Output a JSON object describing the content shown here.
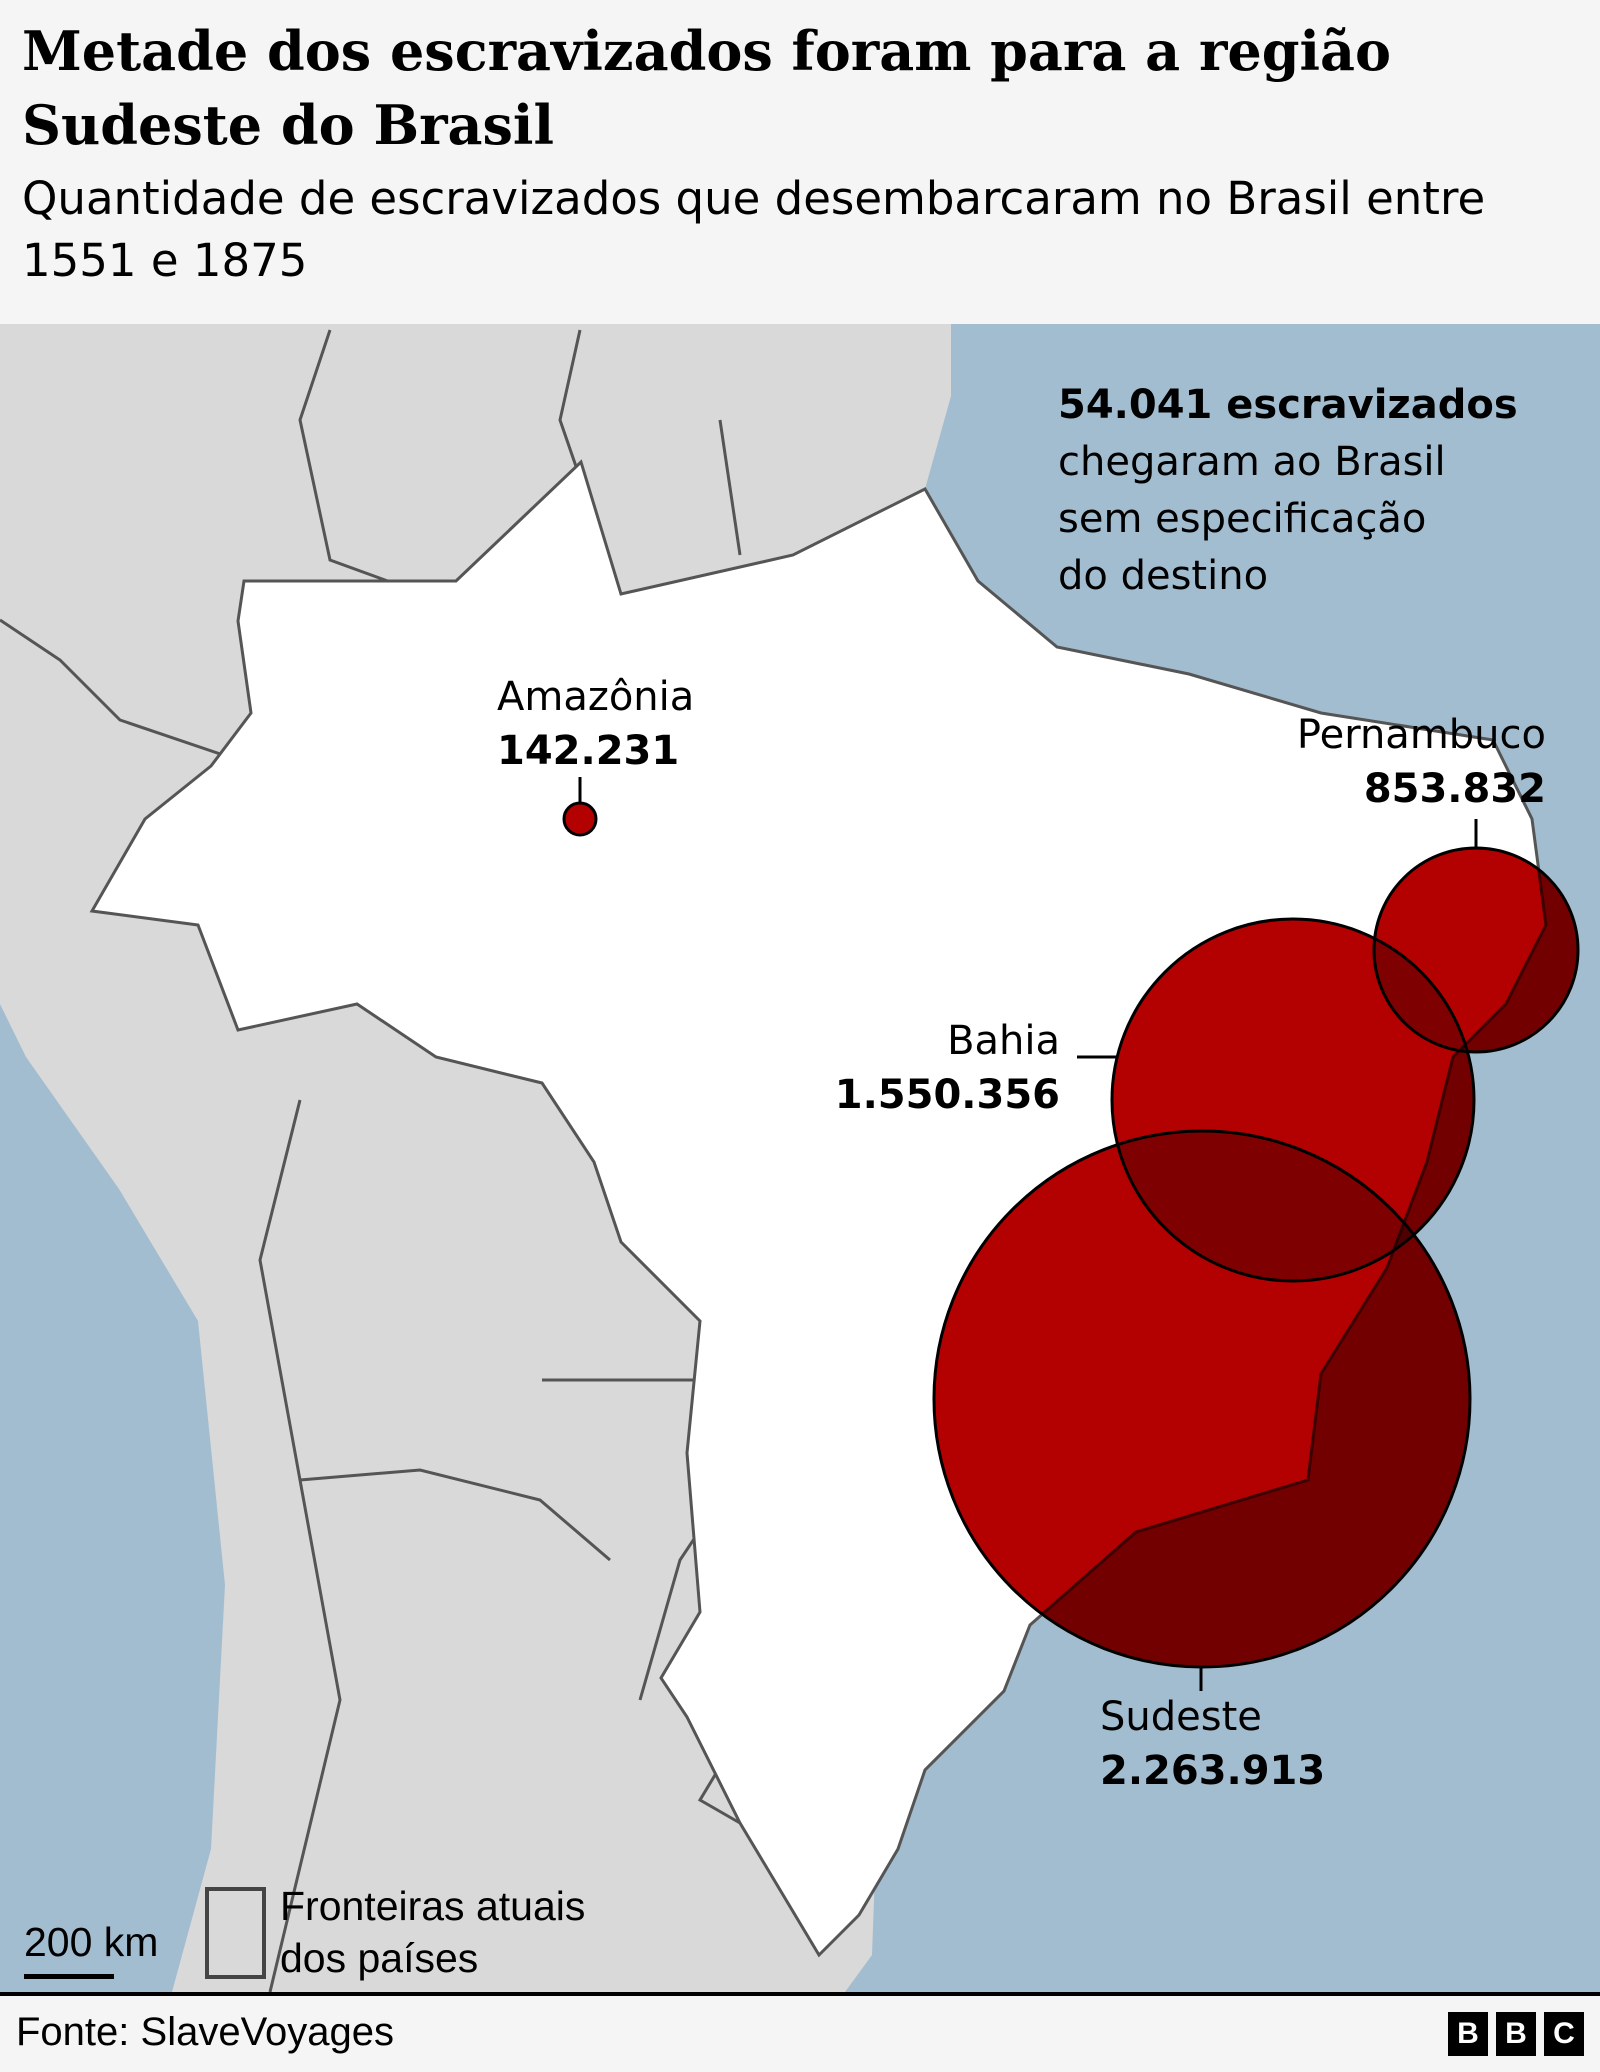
{
  "header": {
    "title": "Metade dos escravizados foram para a região Sudeste do Brasil",
    "subtitle": "Quantidade de escravizados que desembarcaram no Brasil entre 1551 e 1875"
  },
  "note": {
    "bold": "54.041 escravizados",
    "text": "chegaram ao Brasil sem especificação do destino"
  },
  "regions": [
    {
      "name": "Amazônia",
      "value": "142.231",
      "count": 142231
    },
    {
      "name": "Pernambuco",
      "value": "853.832",
      "count": 853832
    },
    {
      "name": "Bahia",
      "value": "1.550.356",
      "count": 1550356
    },
    {
      "name": "Sudeste",
      "value": "2.263.913",
      "count": 2263913
    }
  ],
  "legend": {
    "scale": "200 km",
    "borders": "Fronteiras atuais dos países"
  },
  "footer": {
    "source": "Fonte: SlaveVoyages",
    "logo": [
      "B",
      "B",
      "C"
    ]
  },
  "colors": {
    "ocean": "#a3bdd0",
    "land": "#d9d9d9",
    "brazil": "#ffffff",
    "bubble": "#b30000"
  }
}
